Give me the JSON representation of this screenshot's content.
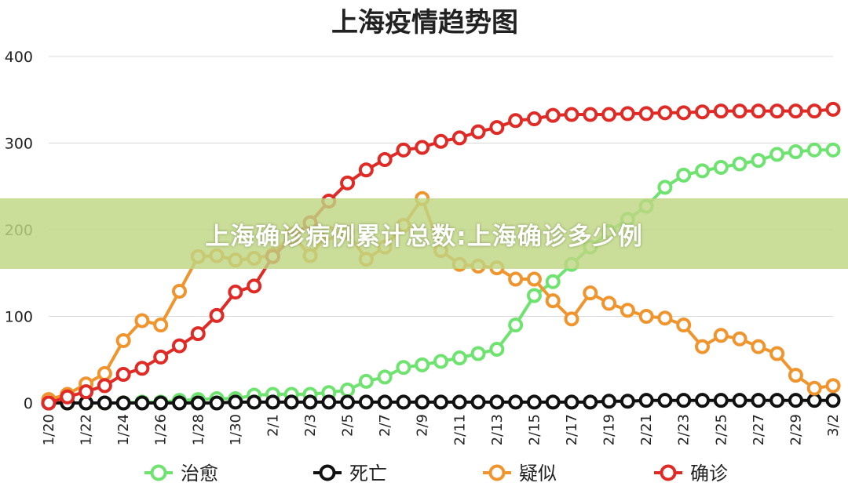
{
  "chart_data": {
    "type": "line",
    "title": "上海疫情趋势图",
    "xlabel": "",
    "ylabel": "",
    "ylim": [
      0,
      400
    ],
    "yticks": [
      "0",
      "100",
      "200",
      "300",
      "400"
    ],
    "x": [
      "1/20",
      "1/21",
      "1/22",
      "1/23",
      "1/24",
      "1/25",
      "1/26",
      "1/27",
      "1/28",
      "1/29",
      "1/30",
      "1/31",
      "2/1",
      "2/2",
      "2/3",
      "2/4",
      "2/5",
      "2/6",
      "2/7",
      "2/8",
      "2/9",
      "2/10",
      "2/11",
      "2/12",
      "2/13",
      "2/14",
      "2/15",
      "2/16",
      "2/17",
      "2/18",
      "2/19",
      "2/20",
      "2/21",
      "2/22",
      "2/23",
      "2/24",
      "2/25",
      "2/26",
      "2/27",
      "2/28",
      "2/29",
      "3/1",
      "3/2"
    ],
    "xticks": [
      "1/20",
      "1/22",
      "1/24",
      "1/26",
      "1/28",
      "1/30",
      "2/1",
      "2/3",
      "2/5",
      "2/7",
      "2/9",
      "2/11",
      "2/13",
      "2/15",
      "2/17",
      "2/19",
      "2/21",
      "2/23",
      "2/25",
      "2/27",
      "2/29",
      "3/2"
    ],
    "grid": true,
    "legend_position": "bottom",
    "series": [
      {
        "name": "治愈",
        "color": "#6fe36f",
        "values": [
          0,
          0,
          0,
          0,
          0,
          1,
          1,
          3,
          4,
          5,
          5,
          9,
          10,
          10,
          10,
          12,
          15,
          25,
          30,
          41,
          44,
          48,
          52,
          57,
          62,
          90,
          124,
          140,
          160,
          180,
          198,
          212,
          227,
          249,
          263,
          268,
          272,
          276,
          280,
          287,
          290,
          292,
          292
        ]
      },
      {
        "name": "死亡",
        "color": "#111111",
        "values": [
          0,
          0,
          0,
          0,
          0,
          0,
          0,
          0,
          0,
          0,
          1,
          1,
          1,
          1,
          1,
          1,
          1,
          1,
          1,
          1,
          1,
          1,
          1,
          1,
          1,
          1,
          1,
          1,
          1,
          1,
          2,
          2,
          3,
          3,
          3,
          3,
          3,
          3,
          3,
          3,
          3,
          3,
          3
        ]
      },
      {
        "name": "疑似",
        "color": "#f0952e",
        "values": [
          4,
          10,
          22,
          34,
          72,
          95,
          90,
          129,
          169,
          170,
          165,
          167,
          171,
          195,
          170,
          196,
          197,
          166,
          180,
          205,
          236,
          176,
          160,
          158,
          156,
          143,
          143,
          118,
          97,
          127,
          115,
          107,
          100,
          98,
          90,
          65,
          78,
          74,
          65,
          57,
          32,
          17,
          20
        ]
      },
      {
        "name": "确诊",
        "color": "#e02a25",
        "values": [
          0,
          7,
          13,
          20,
          33,
          40,
          53,
          66,
          80,
          101,
          128,
          135,
          169,
          190,
          208,
          233,
          254,
          269,
          281,
          292,
          295,
          302,
          306,
          313,
          318,
          326,
          328,
          332,
          333,
          333,
          333,
          334,
          334,
          335,
          335,
          336,
          337,
          337,
          337,
          337,
          337,
          337,
          339
        ]
      }
    ]
  },
  "banner": {
    "text": "上海确诊病例累计总数:上海确诊多少例"
  }
}
